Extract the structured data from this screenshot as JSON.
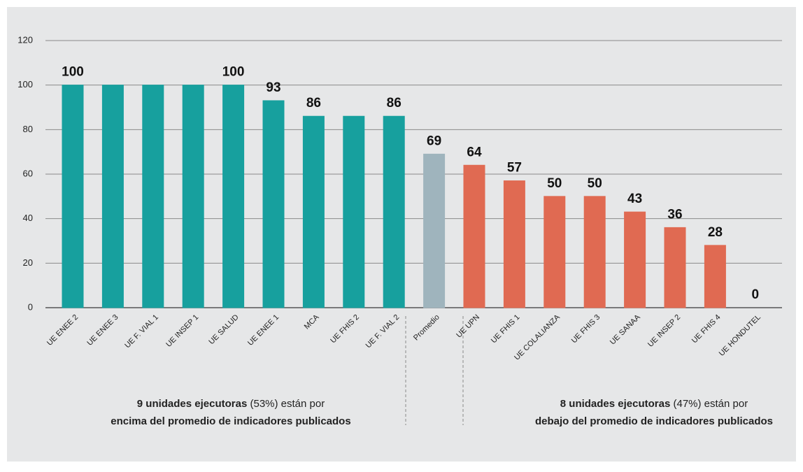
{
  "chart_data": {
    "type": "bar",
    "categories": [
      "UE ENEE 2",
      "UE ENEE 3",
      "UE F. VIAL 1",
      "UE INSEP 1",
      "UE SALUD",
      "UE ENEE 1",
      "MCA",
      "UE FHIS 2",
      "UE F. VIAL 2",
      "Promedio",
      "UE UPN",
      "UE FHIS 1",
      "UE COLALIANZA",
      "UE FHIS 3",
      "UE SANAA",
      "UE INSEP 2",
      "UE FHIS 4",
      "UE HONDUTEL"
    ],
    "values": [
      100,
      100,
      100,
      100,
      100,
      93,
      86,
      86,
      86,
      69,
      64,
      57,
      50,
      50,
      43,
      36,
      28,
      0
    ],
    "value_labels": [
      "100",
      null,
      null,
      null,
      "100",
      "93",
      "86",
      null,
      "86",
      "69",
      "64",
      "57",
      "50",
      "50",
      "43",
      "36",
      "28",
      "0"
    ],
    "colors": [
      "#17a09e",
      "#17a09e",
      "#17a09e",
      "#17a09e",
      "#17a09e",
      "#17a09e",
      "#17a09e",
      "#17a09e",
      "#17a09e",
      "#9fb4bd",
      "#e06a52",
      "#e06a52",
      "#e06a52",
      "#e06a52",
      "#e06a52",
      "#e06a52",
      "#e06a52",
      "#333333"
    ],
    "ylim": [
      0,
      120
    ],
    "yticks": [
      0,
      20,
      40,
      60,
      80,
      100,
      120
    ],
    "grid": true,
    "annotations": [
      {
        "bold": "9 unidades ejecutoras",
        "rest": " (53%) están por",
        "line2": "encima del promedio de indicadores publicados",
        "color": "#17a09c"
      },
      {
        "bold": "8 unidades ejecutoras",
        "rest": " (47%) están por",
        "line2": "debajo del promedio de indicadores publicados",
        "color": "#d9233f"
      }
    ]
  }
}
